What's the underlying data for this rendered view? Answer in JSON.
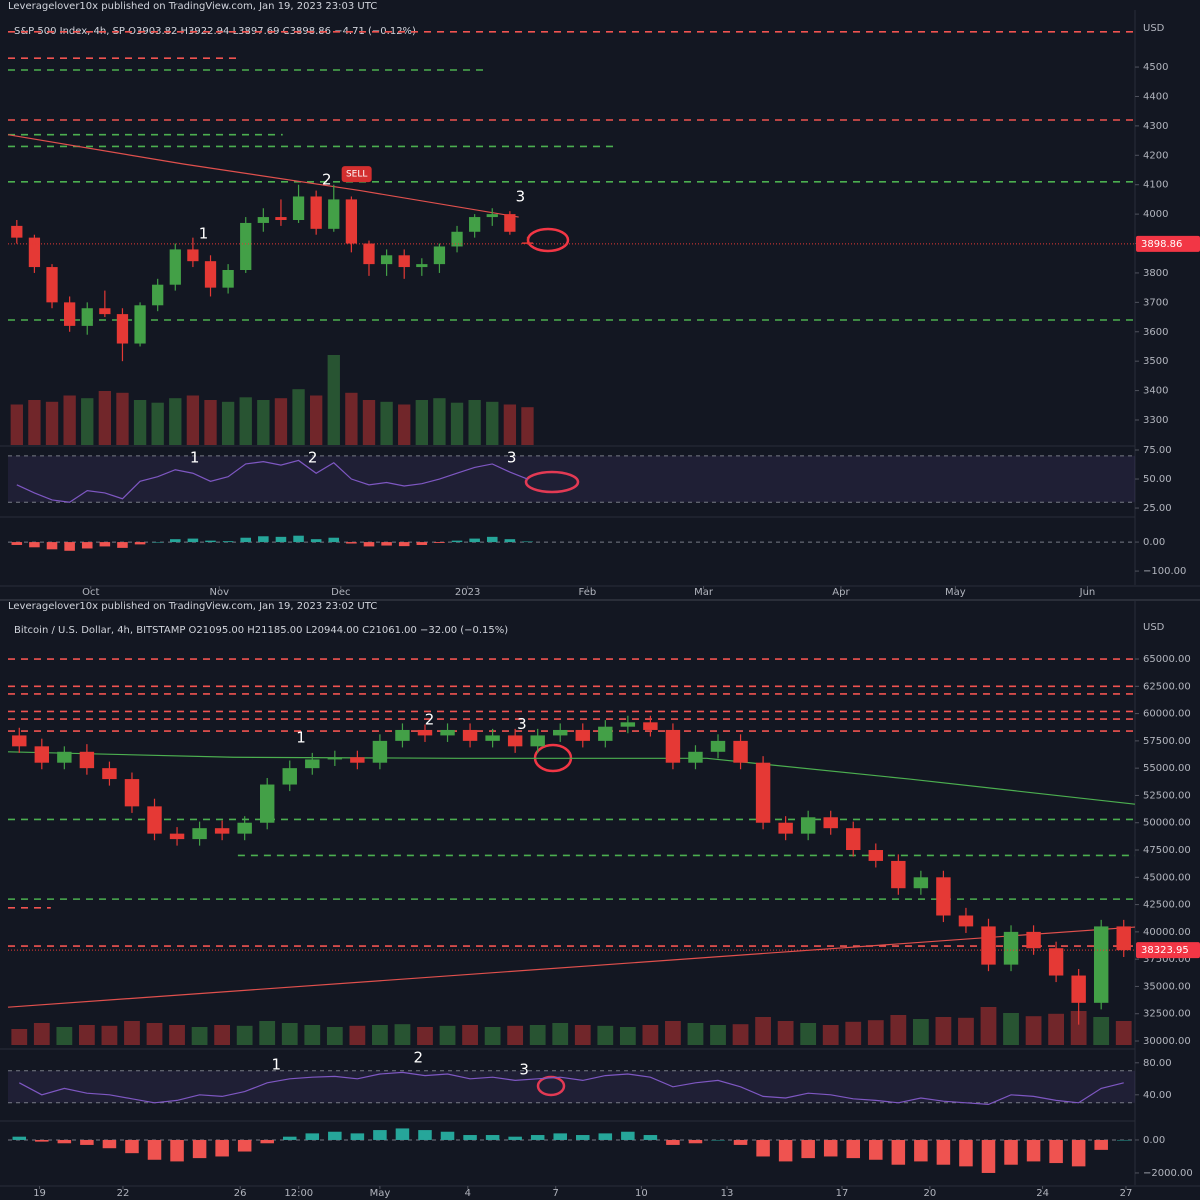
{
  "chart_data": [
    {
      "type": "candlestick",
      "header": "Leveragelover10x published on TradingView.com, Jan 19, 2023 23:03 UTC",
      "title": "S&P 500 Index, 4h, SP  O3903.82  H3922.94  L3897.69  C3898.86  −4.71 (−0.12%)",
      "y_unit": "USD",
      "up_color": "#43a047",
      "down_color": "#e53935",
      "open": [
        3960,
        3920,
        3820,
        3700,
        3620,
        3680,
        3660,
        3560,
        3690,
        3760,
        3880,
        3840,
        3750,
        3810,
        3970,
        3990,
        3980,
        4060,
        3950,
        4050,
        3900,
        3830,
        3860,
        3820,
        3830,
        3890,
        3940,
        3990,
        4000,
        3903.82
      ],
      "high": [
        3980,
        3930,
        3830,
        3720,
        3700,
        3740,
        3680,
        3700,
        3780,
        3900,
        3920,
        3860,
        3830,
        3990,
        4020,
        4050,
        4100,
        4080,
        4100,
        4060,
        3910,
        3880,
        3880,
        3850,
        3900,
        3960,
        4000,
        4020,
        4010,
        3922.94
      ],
      "low": [
        3900,
        3800,
        3680,
        3600,
        3590,
        3650,
        3500,
        3550,
        3670,
        3740,
        3820,
        3720,
        3730,
        3800,
        3940,
        3960,
        3970,
        3930,
        3940,
        3870,
        3790,
        3790,
        3780,
        3790,
        3800,
        3870,
        3920,
        3960,
        3930,
        3897.69
      ],
      "close": [
        3920,
        3820,
        3700,
        3620,
        3680,
        3660,
        3560,
        3690,
        3760,
        3880,
        3840,
        3750,
        3810,
        3970,
        3990,
        3980,
        4060,
        3950,
        4050,
        3900,
        3830,
        3860,
        3820,
        3830,
        3890,
        3940,
        3990,
        4000,
        3940,
        3898.86
      ],
      "volume": [
        45,
        50,
        48,
        55,
        52,
        60,
        58,
        50,
        47,
        52,
        55,
        50,
        48,
        53,
        50,
        52,
        62,
        55,
        100,
        58,
        50,
        48,
        45,
        50,
        52,
        47,
        50,
        48,
        45,
        42
      ],
      "volume_lim": [
        0,
        100
      ],
      "last_price": 3898.86,
      "xlim": [
        0,
        64
      ],
      "xticks": [
        {
          "value": 4.7,
          "label": "Oct"
        },
        {
          "value": 12.0,
          "label": "Nov"
        },
        {
          "value": 18.9,
          "label": "Dec"
        },
        {
          "value": 26.1,
          "label": "2023"
        },
        {
          "value": 32.9,
          "label": "Feb"
        },
        {
          "value": 39.5,
          "label": "Mar"
        },
        {
          "value": 47.3,
          "label": "Apr"
        },
        {
          "value": 53.8,
          "label": "May"
        },
        {
          "value": 61.3,
          "label": "Jun"
        }
      ],
      "ylim": [
        3215,
        4626
      ],
      "yticks": [
        3300,
        3400,
        3500,
        3600,
        3700,
        3800,
        3900,
        4000,
        4100,
        4200,
        4300,
        4400,
        4500
      ],
      "levels": [
        {
          "value": 4620,
          "color": "#f05350"
        },
        {
          "value": 4530,
          "color": "#f05350",
          "end": 13.1
        },
        {
          "value": 4490,
          "color": "#4caf50",
          "end": 27.2
        },
        {
          "value": 4320,
          "color": "#f05350"
        },
        {
          "value": 4270,
          "color": "#4caf50",
          "end": 15.6
        },
        {
          "value": 4230,
          "color": "#4caf50",
          "end": 34.6
        },
        {
          "value": 4110,
          "color": "#4caf50"
        },
        {
          "value": 3640,
          "color": "#4caf50"
        }
      ],
      "ma_lines": [
        {
          "color": "#e0504d",
          "x": [
            0,
            10,
            20,
            29
          ],
          "values": [
            4270,
            4170,
            4080,
            3990
          ]
        }
      ],
      "annotations": [
        {
          "text": "1",
          "x": 11.1,
          "y": 3932
        },
        {
          "text": "2",
          "x": 18.1,
          "y": 4116
        },
        {
          "text": "SELL",
          "x": 19.8,
          "y": 4136,
          "box": "#d32f2f"
        },
        {
          "text": "3",
          "x": 29.1,
          "y": 4058
        }
      ],
      "rsi": {
        "color": "#7e57c2",
        "values": [
          45,
          38,
          32,
          30,
          40,
          38,
          33,
          48,
          52,
          58,
          55,
          48,
          52,
          63,
          65,
          62,
          66,
          55,
          64,
          50,
          45,
          47,
          44,
          46,
          50,
          55,
          60,
          63,
          56,
          50
        ],
        "ylim": [
          19,
          77.6
        ],
        "yticks": [
          {
            "value": 75,
            "label": "75.00"
          },
          {
            "value": 50,
            "label": "50.00"
          },
          {
            "value": 25,
            "label": "25.00"
          }
        ],
        "bands": [
          70,
          30
        ],
        "annotations": [
          {
            "text": "1",
            "x": 10.6,
            "y": 68
          },
          {
            "text": "2",
            "x": 17.3,
            "y": 68
          },
          {
            "text": "3",
            "x": 28.6,
            "y": 68
          }
        ]
      },
      "macd": {
        "up_color": "#26a69a",
        "down_color": "#ef5350",
        "values": [
          -10,
          -18,
          -25,
          -30,
          -22,
          -15,
          -20,
          -8,
          0,
          10,
          12,
          5,
          3,
          15,
          20,
          18,
          22,
          10,
          15,
          -5,
          -15,
          -12,
          -14,
          -10,
          -3,
          5,
          12,
          18,
          10,
          2
        ],
        "ylim": [
          -148,
          83
        ],
        "yticks": [
          {
            "value": 0,
            "label": "0.00"
          },
          {
            "value": -100,
            "label": "−100.00"
          }
        ]
      }
    },
    {
      "type": "candlestick",
      "header": "Leveragelover10x published on TradingView.com, Jan 19, 2023 23:02 UTC",
      "title": "Bitcoin / U.S. Dollar, 4h, BITSTAMP  O21095.00  H21185.00  L20944.00  C21061.00  −32.00 (−0.15%)",
      "y_unit": "USD",
      "up_color": "#43a047",
      "down_color": "#e53935",
      "open": [
        58000,
        57000,
        55500,
        56500,
        55000,
        54000,
        51500,
        49000,
        48500,
        49500,
        49000,
        50000,
        53500,
        55000,
        55800,
        56000,
        55500,
        57500,
        58500,
        58000,
        58500,
        57500,
        58000,
        57000,
        58000,
        58500,
        57500,
        58800,
        59200,
        58500,
        55500,
        56500,
        57500,
        55500,
        50000,
        49000,
        50500,
        49500,
        47500,
        46500,
        44000,
        45000,
        41500,
        40500,
        37000,
        40000,
        38500,
        36000,
        33500,
        40500
      ],
      "high": [
        58700,
        57700,
        57000,
        57200,
        55600,
        54600,
        52200,
        49600,
        50100,
        50200,
        50600,
        54100,
        55700,
        56400,
        56600,
        56600,
        58100,
        59100,
        59000,
        59100,
        59100,
        58600,
        58600,
        58600,
        59100,
        59100,
        59400,
        59800,
        59800,
        59100,
        57100,
        58100,
        58100,
        56100,
        50600,
        51100,
        51100,
        50100,
        48100,
        47100,
        45600,
        45600,
        42200,
        41200,
        40600,
        40600,
        39100,
        36600,
        41100,
        41100
      ],
      "low": [
        56400,
        54900,
        54900,
        54400,
        53400,
        50900,
        48400,
        47900,
        47900,
        48400,
        48400,
        49400,
        52900,
        54400,
        55200,
        54900,
        54900,
        56900,
        57400,
        57400,
        56900,
        56900,
        56400,
        56400,
        57400,
        56900,
        56900,
        58200,
        57900,
        54900,
        54900,
        55900,
        54900,
        49400,
        48400,
        48400,
        48900,
        46900,
        45900,
        43400,
        43400,
        40900,
        39900,
        36400,
        36400,
        37900,
        35400,
        31500,
        32900,
        37700
      ],
      "close": [
        57000,
        55500,
        56500,
        55000,
        54000,
        51500,
        49000,
        48500,
        49500,
        49000,
        50000,
        53500,
        55000,
        55800,
        56000,
        55500,
        57500,
        58500,
        58000,
        58500,
        57500,
        58000,
        57000,
        58000,
        58500,
        57500,
        58800,
        59200,
        58500,
        55500,
        56500,
        57500,
        55500,
        50000,
        49000,
        50500,
        49500,
        47500,
        46500,
        44000,
        45000,
        41500,
        40500,
        37000,
        40000,
        38500,
        36000,
        33500,
        40500,
        38323.95
      ],
      "volume": [
        40,
        55,
        45,
        50,
        48,
        60,
        55,
        50,
        45,
        50,
        48,
        60,
        55,
        50,
        45,
        48,
        50,
        52,
        45,
        48,
        50,
        45,
        48,
        50,
        55,
        50,
        48,
        45,
        50,
        60,
        55,
        50,
        52,
        70,
        60,
        55,
        50,
        58,
        62,
        75,
        65,
        70,
        68,
        95,
        80,
        72,
        78,
        85,
        70,
        60
      ],
      "volume_lim": [
        0,
        100
      ],
      "last_price": 38323.95,
      "xlim": [
        0,
        50
      ],
      "xticks": [
        {
          "value": 1.4,
          "label": "19"
        },
        {
          "value": 5.1,
          "label": "22"
        },
        {
          "value": 10.3,
          "label": "26"
        },
        {
          "value": 12.9,
          "label": "12:00"
        },
        {
          "value": 16.5,
          "label": "May"
        },
        {
          "value": 20.4,
          "label": "4"
        },
        {
          "value": 24.3,
          "label": "7"
        },
        {
          "value": 28.1,
          "label": "10"
        },
        {
          "value": 31.9,
          "label": "13"
        },
        {
          "value": 37.0,
          "label": "17"
        },
        {
          "value": 40.9,
          "label": "20"
        },
        {
          "value": 45.9,
          "label": "24"
        },
        {
          "value": 49.6,
          "label": "27"
        }
      ],
      "ylim": [
        29360,
        68575
      ],
      "yticks": [
        {
          "value": 30000,
          "label": "30000.00"
        },
        {
          "value": 32500,
          "label": "32500.00"
        },
        {
          "value": 35000,
          "label": "35000.00"
        },
        {
          "value": 37500,
          "label": "37500.00"
        },
        {
          "value": 40000,
          "label": "40000.00"
        },
        {
          "value": 42500,
          "label": "42500.00"
        },
        {
          "value": 45000,
          "label": "45000.00"
        },
        {
          "value": 47500,
          "label": "47500.00"
        },
        {
          "value": 50000,
          "label": "50000.00"
        },
        {
          "value": 52500,
          "label": "52500.00"
        },
        {
          "value": 55000,
          "label": "55000.00"
        },
        {
          "value": 57500,
          "label": "57500.00"
        },
        {
          "value": 60000,
          "label": "60000.00"
        },
        {
          "value": 62500,
          "label": "62500.00"
        },
        {
          "value": 65000,
          "label": "65000.00"
        }
      ],
      "levels": [
        {
          "value": 65000,
          "color": "#f05350"
        },
        {
          "value": 62500,
          "color": "#f05350"
        },
        {
          "value": 61800,
          "color": "#f05350"
        },
        {
          "value": 60200,
          "color": "#f05350"
        },
        {
          "value": 59500,
          "color": "#f05350"
        },
        {
          "value": 58400,
          "color": "#f05350"
        },
        {
          "value": 50300,
          "color": "#4caf50"
        },
        {
          "value": 47000,
          "color": "#4caf50",
          "start": 10.2
        },
        {
          "value": 43000,
          "color": "#4caf50"
        },
        {
          "value": 42200,
          "color": "#f05350",
          "end": 1.9
        },
        {
          "value": 38700,
          "color": "#f05350"
        }
      ],
      "ma_lines": [
        {
          "color": "#e0504d",
          "x": [
            0,
            50
          ],
          "values": [
            33100,
            40440
          ]
        },
        {
          "color": "#4caf50",
          "x": [
            0,
            10,
            20,
            31,
            40,
            50
          ],
          "values": [
            56500,
            56000,
            55900,
            55900,
            54000,
            51700
          ]
        }
      ],
      "annotations": [
        {
          "text": "1",
          "x": 13.0,
          "y": 57760
        },
        {
          "text": "2",
          "x": 18.7,
          "y": 59400
        },
        {
          "text": "3",
          "x": 22.8,
          "y": 59000
        }
      ],
      "rsi": {
        "color": "#7e57c2",
        "values": [
          55,
          40,
          48,
          42,
          40,
          35,
          30,
          33,
          40,
          38,
          44,
          55,
          60,
          62,
          63,
          60,
          66,
          68,
          64,
          66,
          60,
          62,
          58,
          60,
          62,
          58,
          64,
          66,
          62,
          50,
          55,
          58,
          50,
          38,
          36,
          42,
          40,
          35,
          33,
          30,
          36,
          32,
          30,
          28,
          40,
          38,
          33,
          30,
          48,
          55
        ],
        "ylim": [
          11,
          96
        ],
        "yticks": [
          {
            "value": 80,
            "label": "80.00"
          },
          {
            "value": 40,
            "label": "40.00"
          }
        ],
        "bands": [
          70,
          30
        ],
        "annotations": [
          {
            "text": "1",
            "x": 11.9,
            "y": 77.5
          },
          {
            "text": "2",
            "x": 18.2,
            "y": 86
          },
          {
            "text": "3",
            "x": 22.9,
            "y": 71
          }
        ]
      },
      "macd": {
        "up_color": "#26a69a",
        "down_color": "#ef5350",
        "values": [
          200,
          -100,
          -200,
          -300,
          -500,
          -800,
          -1200,
          -1300,
          -1100,
          -1000,
          -700,
          -200,
          200,
          400,
          500,
          400,
          600,
          700,
          600,
          500,
          300,
          300,
          200,
          300,
          400,
          300,
          400,
          500,
          300,
          -300,
          -200,
          0,
          -300,
          -1000,
          -1300,
          -1100,
          -1000,
          -1100,
          -1200,
          -1500,
          -1300,
          -1500,
          -1600,
          -2000,
          -1500,
          -1300,
          -1400,
          -1600,
          -600,
          0
        ],
        "ylim": [
          -2730,
          1090
        ],
        "yticks": [
          {
            "value": 0,
            "label": "0.00"
          },
          {
            "value": -2000,
            "label": "−2000.00"
          }
        ]
      }
    }
  ]
}
